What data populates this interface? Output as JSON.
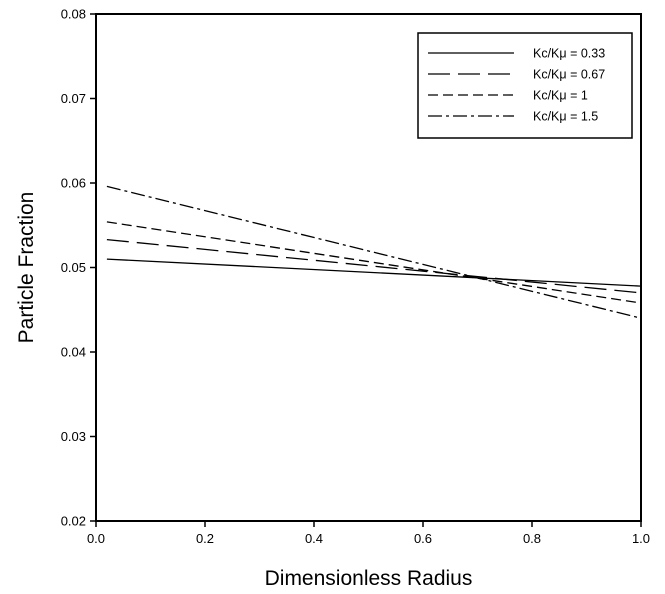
{
  "chart_data": {
    "type": "line",
    "title": "",
    "xlabel": "Dimensionless Radius",
    "ylabel": "Particle Fraction",
    "xlim": [
      0.0,
      1.0
    ],
    "ylim": [
      0.02,
      0.08
    ],
    "x_ticks": [
      "0.0",
      "0.2",
      "0.4",
      "0.6",
      "0.8",
      "1.0"
    ],
    "y_ticks": [
      "0.02",
      "0.03",
      "0.04",
      "0.05",
      "0.06",
      "0.07",
      "0.08"
    ],
    "grid": false,
    "legend_position": "top-right",
    "line_color": "#000000",
    "series": [
      {
        "name": "Kc/Kμ = 0.33",
        "style": "solid",
        "x": [
          0.02,
          1.0
        ],
        "y": [
          0.051,
          0.0478
        ]
      },
      {
        "name": "Kc/Kμ = 0.67",
        "style": "longdash",
        "x": [
          0.02,
          1.0
        ],
        "y": [
          0.0533,
          0.047
        ]
      },
      {
        "name": "Kc/Kμ = 1",
        "style": "dash",
        "x": [
          0.02,
          1.0
        ],
        "y": [
          0.0554,
          0.0458
        ]
      },
      {
        "name": "Kc/Kμ = 1.5",
        "style": "dashdot",
        "x": [
          0.02,
          1.0
        ],
        "y": [
          0.0596,
          0.044
        ]
      }
    ]
  }
}
